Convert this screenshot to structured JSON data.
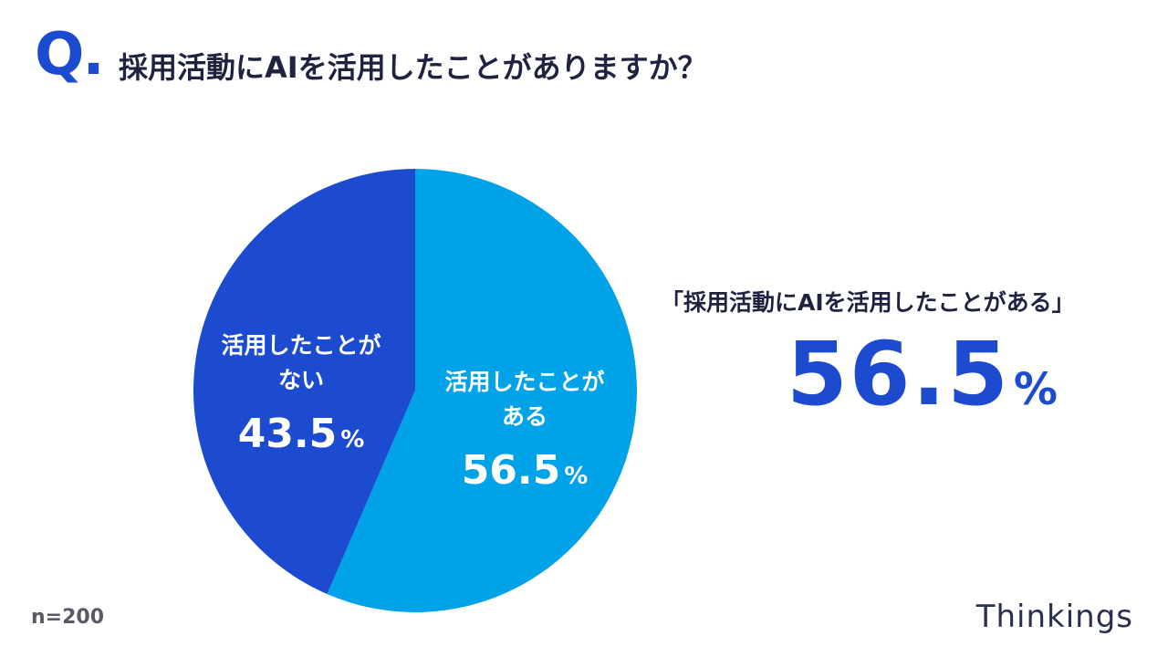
{
  "header": {
    "q_mark": "Q.",
    "question": "採用活動にAIを活用したことがありますか？"
  },
  "chart_data": {
    "type": "pie",
    "slices": [
      {
        "name": "活用したことがある",
        "label_lines": [
          "活用したことが",
          "ある"
        ],
        "value": 56.5,
        "value_text": "56.5",
        "unit": "%",
        "color": "#00a2e8"
      },
      {
        "name": "活用したことがない",
        "label_lines": [
          "活用したことが",
          "ない"
        ],
        "value": 43.5,
        "value_text": "43.5",
        "unit": "%",
        "color": "#1c4bd0"
      }
    ]
  },
  "callout": {
    "label": "「採用活動にAIを活用したことがある」",
    "value": "56.5",
    "unit": "%"
  },
  "footer": {
    "sample_size": "n=200",
    "brand": "Thinkings"
  },
  "colors": {
    "accent": "#1c4bd0",
    "light": "#00a2e8",
    "title": "#1f2340"
  }
}
